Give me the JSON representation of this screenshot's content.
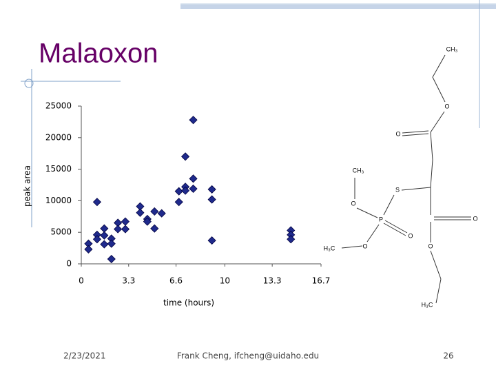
{
  "chart_data": {
    "type": "scatter",
    "title": "Malaoxon",
    "x_label": "time (hours)",
    "y_label": "peak area",
    "x": [
      0.5,
      0.5,
      1.1,
      1.1,
      1.1,
      1.6,
      1.6,
      1.6,
      2.1,
      2.1,
      2.1,
      2.55,
      2.55,
      3.07,
      3.07,
      4.1,
      4.1,
      4.6,
      4.6,
      5.1,
      5.1,
      5.6,
      6.8,
      6.8,
      7.25,
      7.25,
      7.25,
      7.8,
      7.8,
      7.8,
      9.1,
      9.1,
      9.1,
      14.6,
      14.6,
      14.6
    ],
    "values": [
      3200,
      2300,
      9800,
      4600,
      3900,
      5600,
      4500,
      3100,
      4000,
      3200,
      760,
      6500,
      5500,
      6700,
      5500,
      9100,
      8100,
      7100,
      6700,
      8300,
      5600,
      8000,
      11500,
      9800,
      17000,
      12200,
      11600,
      22800,
      13500,
      11900,
      11800,
      10200,
      3700,
      5300,
      4600,
      3900
    ],
    "color": "#1f2a8c",
    "xlim": [
      0,
      16.7
    ],
    "xticks": [
      0,
      3.3,
      6.6,
      10,
      13.3,
      16.7
    ],
    "ylim": [
      0,
      25000
    ],
    "yticks": [
      0,
      5000,
      10000,
      15000,
      20000,
      25000
    ]
  },
  "structure": {
    "labels": [
      "CH₃",
      "O",
      "O",
      "CH₃",
      "S",
      "O",
      "P",
      "O",
      "O",
      "O",
      "H₃C",
      "O",
      "H₃C"
    ]
  },
  "footer": {
    "date": "2/23/2021",
    "author": "Frank Cheng, ifcheng@uidaho.edu",
    "page": "26"
  }
}
